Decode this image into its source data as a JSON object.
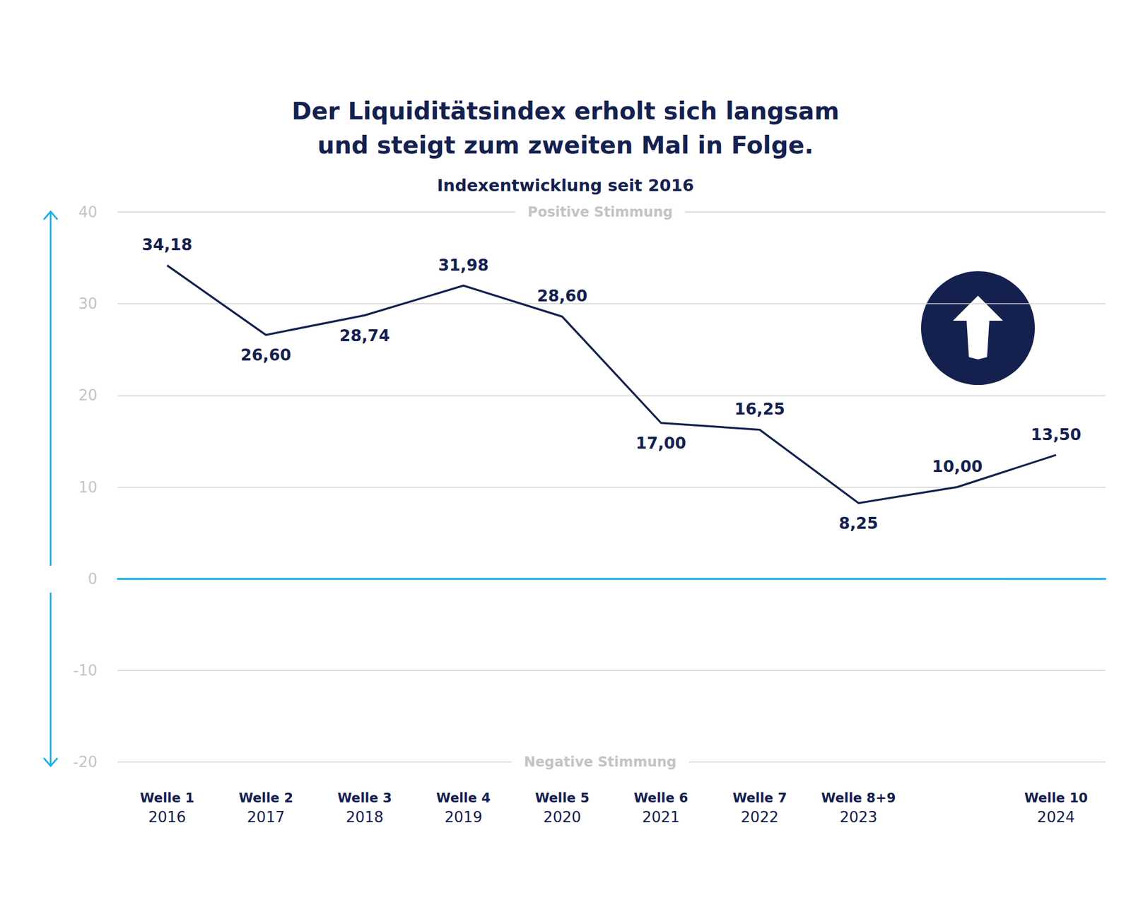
{
  "chart_data": {
    "type": "line",
    "title": "Der Liquiditätsindex erholt sich langsam\nund steigt zum zweiten Mal in Folge.",
    "subtitle": "Indexentwicklung seit 2016",
    "annotations": [
      "Positive Stimmung",
      "Negative Stimmung"
    ],
    "categories": [
      "Welle 1\n2016",
      "Welle 2\n2017",
      "Welle 3\n2018",
      "Welle 4\n2019",
      "Welle 5\n2020",
      "Welle 6\n2021",
      "Welle 7\n2022",
      "Welle 8+9\n2023",
      null,
      "Welle 10\n2024"
    ],
    "values": [
      34.18,
      26.6,
      28.74,
      31.98,
      28.6,
      17,
      16.25,
      8.25,
      10,
      13.5
    ],
    "value_labels": [
      "34,18",
      "26,60",
      "28,74",
      "31,98",
      "28,60",
      "17,00",
      "16,25",
      "8,25",
      "10,00",
      "13,50"
    ],
    "color": "#14214f",
    "ylim": [
      -20,
      40
    ],
    "yticks": [
      -20,
      -10,
      0,
      10,
      20,
      30,
      40
    ],
    "grid": true,
    "data_labels": true,
    "marker": "none"
  }
}
